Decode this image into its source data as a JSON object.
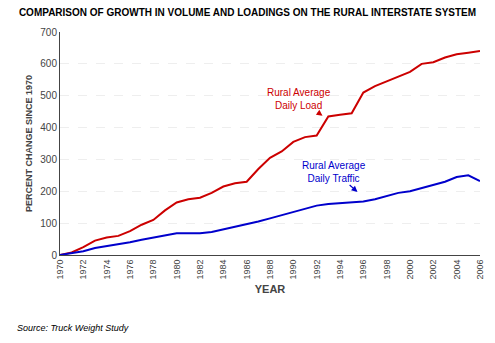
{
  "chart_data": {
    "type": "line",
    "title": "COMPARISON OF GROWTH IN VOLUME AND LOADINGS ON THE RURAL INTERSTATE SYSTEM",
    "xlabel": "YEAR",
    "ylabel": "PERCENT CHANGE SINCE 1970",
    "source": "Source: Truck Weight Study",
    "x": [
      1970,
      1971,
      1972,
      1973,
      1974,
      1975,
      1976,
      1977,
      1978,
      1979,
      1980,
      1981,
      1982,
      1983,
      1984,
      1985,
      1986,
      1987,
      1988,
      1989,
      1990,
      1991,
      1992,
      1993,
      1994,
      1995,
      1996,
      1997,
      1998,
      1999,
      2000,
      2001,
      2002,
      2003,
      2004,
      2005,
      2006
    ],
    "series": [
      {
        "color": "#cc0000",
        "values": [
          0,
          8,
          25,
          45,
          55,
          60,
          75,
          95,
          110,
          140,
          165,
          175,
          180,
          195,
          215,
          225,
          230,
          270,
          305,
          325,
          355,
          370,
          375,
          435,
          440,
          445,
          510,
          530,
          545,
          560,
          575,
          600,
          605,
          620,
          630,
          635,
          640
        ]
      },
      {
        "color": "#0000cc",
        "values": [
          0,
          5,
          12,
          22,
          28,
          32,
          40,
          48,
          55,
          62,
          68,
          68,
          68,
          72,
          80,
          88,
          95,
          105,
          115,
          125,
          135,
          145,
          155,
          160,
          162,
          165,
          168,
          175,
          185,
          195,
          200,
          210,
          220,
          230,
          245,
          250,
          232
        ]
      }
    ],
    "xlim": [
      1970,
      2006
    ],
    "ylim": [
      0,
      700
    ],
    "xticks": [
      1970,
      1972,
      1974,
      1976,
      1978,
      1980,
      1982,
      1984,
      1986,
      1988,
      1990,
      1992,
      1994,
      1996,
      1998,
      2000,
      2002,
      2004,
      2006
    ],
    "yticks": [
      0,
      100,
      200,
      300,
      400,
      500,
      600,
      700
    ],
    "grid": "y",
    "annotations": [
      {
        "text": "Rural Average\nDaily Load",
        "x": 1992.5,
        "y": 437,
        "text_x": 1990.5,
        "text_y": 490,
        "color": "#cc0000"
      },
      {
        "text": "Rural Average\nDaily Traffic",
        "x": 1995.5,
        "y": 198,
        "text_x": 1993.5,
        "text_y": 262,
        "color": "#0000cc"
      }
    ]
  }
}
